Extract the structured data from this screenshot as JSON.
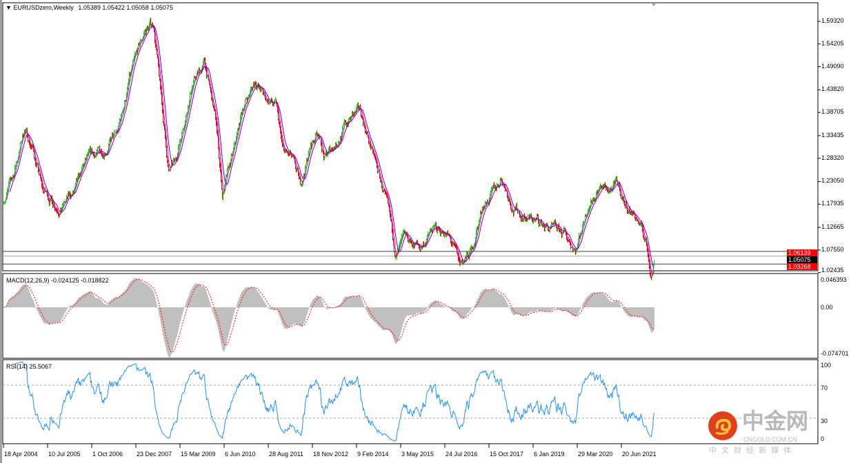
{
  "header": {
    "symbol_timeframe": "EURUSDzero,Weekly",
    "ohlc": "1.05389 1.05422 1.05058 1.05075",
    "menu_icon": "triangle-down-icon"
  },
  "price_axis": {
    "ticks": [
      "1.59320",
      "1.54205",
      "1.49090",
      "1.43820",
      "1.38705",
      "1.33435",
      "1.28320",
      "1.23050",
      "1.17935",
      "1.12665",
      "1.07550",
      "1.02435"
    ],
    "tags": [
      {
        "value": "1.06139",
        "color": "#ff0000"
      },
      {
        "value": "1.05075",
        "color": "#000000"
      },
      {
        "value": "1.03268",
        "color": "#ff0000"
      }
    ]
  },
  "macd": {
    "label": "MACD(12,26,9) -0.024125 -0.018822",
    "ticks": [
      "0.046393",
      "0.00",
      "-0.074701"
    ]
  },
  "rsi": {
    "label": "RSI(14) 25.5067",
    "ticks": [
      "100",
      "70",
      "30",
      "0"
    ]
  },
  "time_axis": {
    "labels": [
      "18 Apr 2004",
      "10 Jul 2005",
      "1 Oct 2006",
      "23 Dec 2007",
      "15 Mar 2009",
      "6 Jun 2010",
      "28 Aug 2011",
      "18 Nov 2012",
      "9 Feb 2014",
      "3 May 2015",
      "24 Jul 2016",
      "15 Oct 2017",
      "6 Jan 2019",
      "29 Mar 2020",
      "20 Jun 2021"
    ]
  },
  "watermark": {
    "brand": "中金网",
    "domain": "CNGOLD.COM.CN",
    "tagline": "中 文 财 经 新 媒 体"
  },
  "colors": {
    "bull": "#00e000",
    "bear": "#ff0000",
    "ma1": "#cc00cc",
    "ma2": "#6600cc",
    "macd_hist": "#c0c0c0",
    "macd_signal": "#ff0000",
    "rsi": "#1e90ff"
  },
  "chart_data": {
    "type": "candlestick",
    "symbol": "EURUSDzero",
    "timeframe": "Weekly",
    "ylim": [
      1.02435,
      1.5932
    ],
    "close_path": [
      [
        "2004-04",
        1.19
      ],
      [
        "2004-07",
        1.24
      ],
      [
        "2004-11",
        1.35
      ],
      [
        "2005-02",
        1.3
      ],
      [
        "2005-05",
        1.21
      ],
      [
        "2005-11",
        1.17
      ],
      [
        "2006-04",
        1.21
      ],
      [
        "2006-08",
        1.28
      ],
      [
        "2007-01",
        1.3
      ],
      [
        "2007-06",
        1.34
      ],
      [
        "2007-10",
        1.46
      ],
      [
        "2008-03",
        1.57
      ],
      [
        "2008-06",
        1.59
      ],
      [
        "2008-08",
        1.45
      ],
      [
        "2008-11",
        1.25
      ],
      [
        "2009-01",
        1.27
      ],
      [
        "2009-03",
        1.33
      ],
      [
        "2009-07",
        1.45
      ],
      [
        "2009-11",
        1.5
      ],
      [
        "2010-03",
        1.36
      ],
      [
        "2010-05",
        1.2
      ],
      [
        "2010-09",
        1.3
      ],
      [
        "2010-12",
        1.4
      ],
      [
        "2011-04",
        1.46
      ],
      [
        "2011-07",
        1.42
      ],
      [
        "2011-11",
        1.4
      ],
      [
        "2012-01",
        1.3
      ],
      [
        "2012-04",
        1.28
      ],
      [
        "2012-07",
        1.22
      ],
      [
        "2012-10",
        1.3
      ],
      [
        "2013-01",
        1.35
      ],
      [
        "2013-03",
        1.28
      ],
      [
        "2013-07",
        1.32
      ],
      [
        "2013-11",
        1.37
      ],
      [
        "2014-03",
        1.39
      ],
      [
        "2014-08",
        1.27
      ],
      [
        "2014-11",
        1.2
      ],
      [
        "2015-03",
        1.06
      ],
      [
        "2015-06",
        1.1
      ],
      [
        "2015-11",
        1.08
      ],
      [
        "2016-03",
        1.12
      ],
      [
        "2016-07",
        1.12
      ],
      [
        "2016-10",
        1.08
      ],
      [
        "2016-12",
        1.04
      ],
      [
        "2017-04",
        1.07
      ],
      [
        "2017-08",
        1.18
      ],
      [
        "2017-11",
        1.2
      ],
      [
        "2018-02",
        1.24
      ],
      [
        "2018-06",
        1.17
      ],
      [
        "2018-10",
        1.15
      ],
      [
        "2019-02",
        1.14
      ],
      [
        "2019-07",
        1.12
      ],
      [
        "2019-11",
        1.11
      ],
      [
        "2020-03",
        1.08
      ],
      [
        "2020-07",
        1.18
      ],
      [
        "2020-11",
        1.22
      ],
      [
        "2021-01",
        1.21
      ],
      [
        "2021-05",
        1.22
      ],
      [
        "2021-07",
        1.18
      ],
      [
        "2021-11",
        1.15
      ],
      [
        "2022-02",
        1.1
      ],
      [
        "2022-04",
        1.02
      ],
      [
        "2022-05",
        1.05075
      ]
    ],
    "horizontal_levels": [
      1.06139,
      1.05075,
      1.03268
    ],
    "macd_range": [
      -0.074701,
      0.046393
    ],
    "rsi_levels": [
      70,
      30
    ]
  }
}
